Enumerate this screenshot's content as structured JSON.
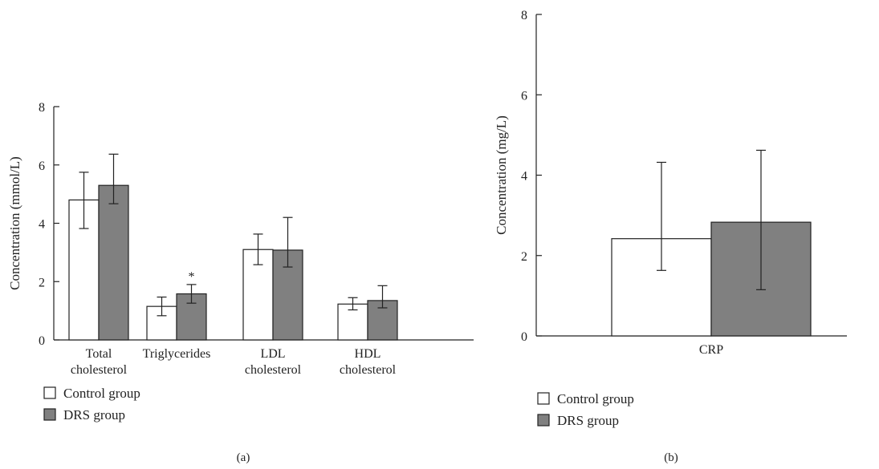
{
  "colors": {
    "control": "#ffffff",
    "drs": "#808080",
    "stroke": "#222222"
  },
  "chart_data": [
    {
      "type": "bar",
      "panel_label": "(a)",
      "ylabel": "Concentration (mmol/L)",
      "ylim": [
        0,
        8
      ],
      "yticks": [
        "0",
        "2",
        "4",
        "6",
        "8"
      ],
      "categories": [
        [
          "Total",
          "cholesterol"
        ],
        [
          "Triglycerides"
        ],
        [
          "LDL",
          "cholesterol"
        ],
        [
          "HDL",
          "cholesterol"
        ]
      ],
      "series": [
        {
          "name": "Control group",
          "values": [
            4.8,
            1.15,
            3.1,
            1.23
          ],
          "err_low": [
            3.82,
            0.83,
            2.58,
            1.03
          ],
          "err_high": [
            5.75,
            1.47,
            3.63,
            1.45
          ]
        },
        {
          "name": "DRS group",
          "values": [
            5.3,
            1.58,
            3.08,
            1.35
          ],
          "err_low": [
            4.67,
            1.26,
            2.5,
            1.1
          ],
          "err_high": [
            6.37,
            1.9,
            4.2,
            1.86
          ]
        }
      ],
      "annotations": [
        {
          "text": "*",
          "category": 1,
          "series": 1
        }
      ],
      "legend": [
        "Control group",
        "DRS group"
      ]
    },
    {
      "type": "bar",
      "panel_label": "(b)",
      "ylabel": "Concentration (mg/L)",
      "ylim": [
        0,
        8
      ],
      "yticks": [
        "0",
        "2",
        "4",
        "6",
        "8"
      ],
      "categories": [
        [
          "CRP"
        ]
      ],
      "series": [
        {
          "name": "Control group",
          "values": [
            2.42
          ],
          "err_low": [
            1.63
          ],
          "err_high": [
            4.32
          ]
        },
        {
          "name": "DRS group",
          "values": [
            2.83
          ],
          "err_low": [
            1.15
          ],
          "err_high": [
            4.62
          ]
        }
      ],
      "legend": [
        "Control group",
        "DRS group"
      ]
    }
  ]
}
